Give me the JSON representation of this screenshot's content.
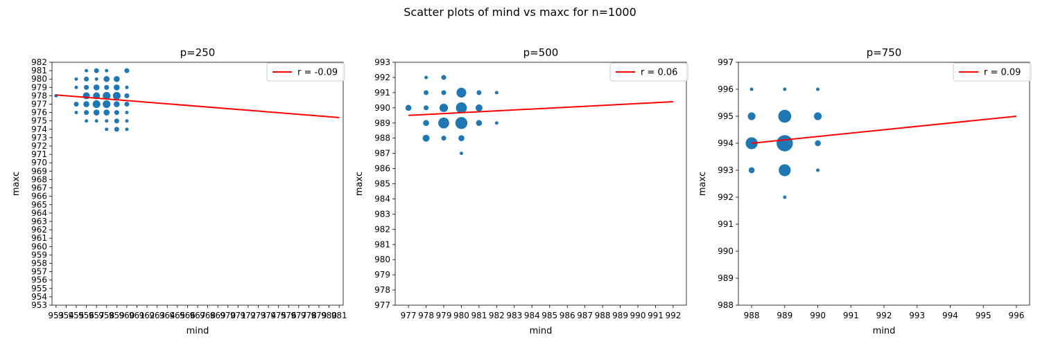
{
  "figure_title": "Scatter plots of mind vs maxc for n=1000",
  "colors": {
    "points": "#1f77b4",
    "fit_line": "#ff0000",
    "axes": "#000000",
    "legend_edge": "#cccccc"
  },
  "chart_data": [
    {
      "type": "scatter",
      "title": "p=250",
      "xlabel": "mind",
      "ylabel": "maxc",
      "xlim": [
        952.6,
        981.4
      ],
      "ylim": [
        953,
        982
      ],
      "xticks": [
        953,
        954,
        955,
        956,
        957,
        958,
        959,
        960,
        961,
        962,
        963,
        964,
        965,
        966,
        967,
        968,
        969,
        970,
        971,
        972,
        973,
        974,
        975,
        976,
        977,
        978,
        979,
        980,
        981
      ],
      "xtick_labels": [
        "953",
        "954",
        "955",
        "956",
        "957",
        "958",
        "959",
        "960",
        "961",
        "962",
        "963",
        "964",
        "965",
        "966",
        "967",
        "968",
        "969",
        "970",
        "971",
        "972",
        "973",
        "974",
        "975",
        "976",
        "977",
        "978",
        "979",
        "980",
        "981"
      ],
      "yticks": [
        953,
        954,
        955,
        956,
        957,
        958,
        959,
        960,
        961,
        962,
        963,
        964,
        965,
        966,
        967,
        968,
        969,
        970,
        971,
        972,
        973,
        974,
        975,
        976,
        977,
        978,
        979,
        980,
        981,
        982
      ],
      "ytick_labels": [
        "953",
        "954",
        "955",
        "956",
        "957",
        "958",
        "959",
        "960",
        "961",
        "962",
        "963",
        "964",
        "965",
        "966",
        "967",
        "968",
        "969",
        "970",
        "971",
        "972",
        "973",
        "974",
        "975",
        "976",
        "977",
        "978",
        "979",
        "980",
        "981",
        "982"
      ],
      "points": [
        {
          "x": 953,
          "y": 978,
          "n": 1
        },
        {
          "x": 955,
          "y": 980,
          "n": 1
        },
        {
          "x": 955,
          "y": 979,
          "n": 1
        },
        {
          "x": 955,
          "y": 977,
          "n": 2
        },
        {
          "x": 955,
          "y": 976,
          "n": 1
        },
        {
          "x": 956,
          "y": 981,
          "n": 1
        },
        {
          "x": 956,
          "y": 980,
          "n": 2
        },
        {
          "x": 956,
          "y": 979,
          "n": 2
        },
        {
          "x": 956,
          "y": 978,
          "n": 4
        },
        {
          "x": 956,
          "y": 977,
          "n": 3
        },
        {
          "x": 956,
          "y": 976,
          "n": 2
        },
        {
          "x": 956,
          "y": 975,
          "n": 1
        },
        {
          "x": 957,
          "y": 981,
          "n": 2
        },
        {
          "x": 957,
          "y": 980,
          "n": 1
        },
        {
          "x": 957,
          "y": 979,
          "n": 3
        },
        {
          "x": 957,
          "y": 978,
          "n": 4
        },
        {
          "x": 957,
          "y": 977,
          "n": 5
        },
        {
          "x": 957,
          "y": 976,
          "n": 3
        },
        {
          "x": 957,
          "y": 975,
          "n": 1
        },
        {
          "x": 958,
          "y": 981,
          "n": 1
        },
        {
          "x": 958,
          "y": 980,
          "n": 3
        },
        {
          "x": 958,
          "y": 979,
          "n": 2
        },
        {
          "x": 958,
          "y": 978,
          "n": 5
        },
        {
          "x": 958,
          "y": 977,
          "n": 5
        },
        {
          "x": 958,
          "y": 976,
          "n": 3
        },
        {
          "x": 958,
          "y": 975,
          "n": 1
        },
        {
          "x": 958,
          "y": 974,
          "n": 1
        },
        {
          "x": 959,
          "y": 980,
          "n": 3
        },
        {
          "x": 959,
          "y": 979,
          "n": 3
        },
        {
          "x": 959,
          "y": 978,
          "n": 5
        },
        {
          "x": 959,
          "y": 977,
          "n": 3
        },
        {
          "x": 959,
          "y": 976,
          "n": 2
        },
        {
          "x": 959,
          "y": 975,
          "n": 2
        },
        {
          "x": 959,
          "y": 974,
          "n": 2
        },
        {
          "x": 960,
          "y": 981,
          "n": 2
        },
        {
          "x": 960,
          "y": 979,
          "n": 1
        },
        {
          "x": 960,
          "y": 978,
          "n": 2
        },
        {
          "x": 960,
          "y": 977,
          "n": 2
        },
        {
          "x": 960,
          "y": 976,
          "n": 1
        },
        {
          "x": 960,
          "y": 975,
          "n": 1
        },
        {
          "x": 960,
          "y": 974,
          "n": 1
        }
      ],
      "fit": {
        "label": "r = -0.09",
        "x": [
          953,
          981
        ],
        "y": [
          978.1,
          975.4
        ]
      },
      "legend_position": "top-right"
    },
    {
      "type": "scatter",
      "title": "p=500",
      "xlabel": "mind",
      "ylabel": "maxc",
      "xlim": [
        976.25,
        992.75
      ],
      "ylim": [
        977,
        993
      ],
      "xticks": [
        977,
        978,
        979,
        980,
        981,
        982,
        983,
        984,
        985,
        986,
        987,
        988,
        989,
        990,
        991,
        992
      ],
      "xtick_labels": [
        "977",
        "978",
        "979",
        "980",
        "981",
        "982",
        "983",
        "984",
        "985",
        "986",
        "987",
        "988",
        "989",
        "990",
        "991",
        "992"
      ],
      "yticks": [
        977,
        978,
        979,
        980,
        981,
        982,
        983,
        984,
        985,
        986,
        987,
        988,
        989,
        990,
        991,
        992,
        993
      ],
      "ytick_labels": [
        "977",
        "978",
        "979",
        "980",
        "981",
        "982",
        "983",
        "984",
        "985",
        "986",
        "987",
        "988",
        "989",
        "990",
        "991",
        "992",
        "993"
      ],
      "points": [
        {
          "x": 977,
          "y": 990,
          "n": 3
        },
        {
          "x": 978,
          "y": 992,
          "n": 1
        },
        {
          "x": 978,
          "y": 991,
          "n": 2
        },
        {
          "x": 978,
          "y": 990,
          "n": 2
        },
        {
          "x": 978,
          "y": 989,
          "n": 3
        },
        {
          "x": 978,
          "y": 988,
          "n": 4
        },
        {
          "x": 979,
          "y": 992,
          "n": 2
        },
        {
          "x": 979,
          "y": 991,
          "n": 2
        },
        {
          "x": 979,
          "y": 990,
          "n": 6
        },
        {
          "x": 979,
          "y": 989,
          "n": 10
        },
        {
          "x": 979,
          "y": 988,
          "n": 2
        },
        {
          "x": 980,
          "y": 991,
          "n": 8
        },
        {
          "x": 980,
          "y": 990,
          "n": 10
        },
        {
          "x": 980,
          "y": 989,
          "n": 12
        },
        {
          "x": 980,
          "y": 988,
          "n": 3
        },
        {
          "x": 980,
          "y": 987,
          "n": 1
        },
        {
          "x": 981,
          "y": 991,
          "n": 2
        },
        {
          "x": 981,
          "y": 990,
          "n": 4
        },
        {
          "x": 981,
          "y": 989,
          "n": 3
        },
        {
          "x": 982,
          "y": 991,
          "n": 1
        },
        {
          "x": 982,
          "y": 989,
          "n": 1
        }
      ],
      "fit": {
        "label": "r = 0.06",
        "x": [
          977,
          992
        ],
        "y": [
          989.5,
          990.4
        ]
      },
      "legend_position": "top-right"
    },
    {
      "type": "scatter",
      "title": "p=750",
      "xlabel": "mind",
      "ylabel": "maxc",
      "xlim": [
        987.6,
        996.4
      ],
      "ylim": [
        988,
        997
      ],
      "xticks": [
        988,
        989,
        990,
        991,
        992,
        993,
        994,
        995,
        996
      ],
      "xtick_labels": [
        "988",
        "989",
        "990",
        "991",
        "992",
        "993",
        "994",
        "995",
        "996"
      ],
      "yticks": [
        988,
        989,
        990,
        991,
        992,
        993,
        994,
        995,
        996,
        997
      ],
      "ytick_labels": [
        "988",
        "989",
        "990",
        "991",
        "992",
        "993",
        "994",
        "995",
        "996",
        "997"
      ],
      "points": [
        {
          "x": 988,
          "y": 996,
          "n": 1
        },
        {
          "x": 988,
          "y": 995,
          "n": 5
        },
        {
          "x": 988,
          "y": 994,
          "n": 12
        },
        {
          "x": 988,
          "y": 993,
          "n": 3
        },
        {
          "x": 989,
          "y": 996,
          "n": 1
        },
        {
          "x": 989,
          "y": 995,
          "n": 14
        },
        {
          "x": 989,
          "y": 994,
          "n": 22
        },
        {
          "x": 989,
          "y": 993,
          "n": 12
        },
        {
          "x": 989,
          "y": 992,
          "n": 1
        },
        {
          "x": 990,
          "y": 996,
          "n": 1
        },
        {
          "x": 990,
          "y": 995,
          "n": 5
        },
        {
          "x": 990,
          "y": 994,
          "n": 3
        },
        {
          "x": 990,
          "y": 993,
          "n": 1
        }
      ],
      "fit": {
        "label": "r = 0.09",
        "x": [
          988,
          996
        ],
        "y": [
          994.0,
          995.0
        ]
      },
      "legend_position": "top-right"
    }
  ]
}
